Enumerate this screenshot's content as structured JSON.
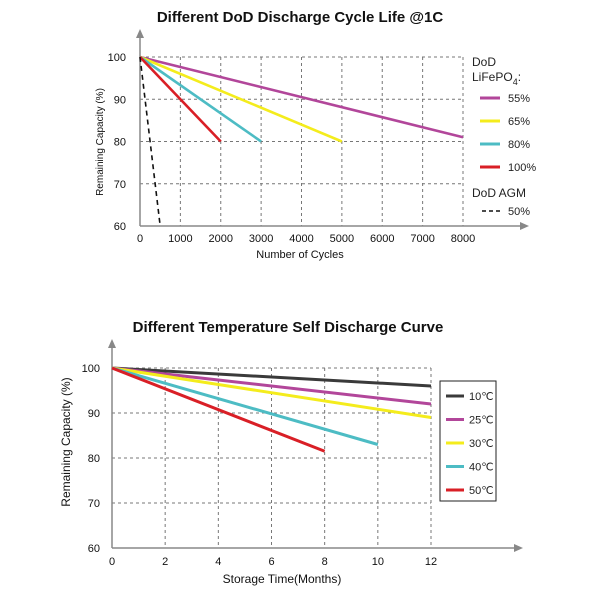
{
  "chart_data": [
    {
      "type": "line",
      "title": "Different DoD Discharge Cycle Life @1C",
      "xlabel": "Number of Cycles",
      "ylabel": "Remaining Capacity (%)",
      "xlim": [
        0,
        8000
      ],
      "ylim": [
        60,
        100
      ],
      "xticks": [
        "0",
        "1000",
        "2000",
        "3000",
        "4000",
        "5000",
        "6000",
        "7000",
        "8000"
      ],
      "yticks": [
        "60",
        "70",
        "80",
        "90",
        "100"
      ],
      "legend_title": "DoD",
      "legend_subtitle": "LiFePO",
      "legend_subtitle_sub": "4",
      "legend_subtitle_suffix": ":",
      "legend_group2_title": "DoD AGM",
      "grid": true,
      "series": [
        {
          "name": "55%",
          "color": "#b2469a",
          "dashed": false,
          "x": [
            0,
            8000
          ],
          "y": [
            100,
            81
          ]
        },
        {
          "name": "65%",
          "color": "#f4ec1c",
          "dashed": false,
          "x": [
            0,
            5000
          ],
          "y": [
            100,
            80
          ]
        },
        {
          "name": "80%",
          "color": "#4dbcc4",
          "dashed": false,
          "x": [
            0,
            3000
          ],
          "y": [
            100,
            80
          ]
        },
        {
          "name": "100%",
          "color": "#d91f26",
          "dashed": false,
          "x": [
            0,
            2000
          ],
          "y": [
            100,
            80
          ]
        },
        {
          "name": "50%",
          "color": "#111111",
          "dashed": true,
          "x": [
            0,
            500
          ],
          "y": [
            100,
            60
          ]
        }
      ]
    },
    {
      "type": "line",
      "title": "Different Temperature Self Discharge Curve",
      "xlabel": "Storage Time(Months)",
      "ylabel": "Remaining Capacity (%)",
      "xlim": [
        0,
        12
      ],
      "ylim": [
        60,
        100
      ],
      "xticks": [
        "0",
        "2",
        "4",
        "6",
        "8",
        "10",
        "12"
      ],
      "yticks": [
        "60",
        "70",
        "80",
        "90",
        "100"
      ],
      "grid": true,
      "series": [
        {
          "name": "10℃",
          "color": "#3a3a3a",
          "dashed": false,
          "x": [
            0,
            12
          ],
          "y": [
            100,
            96
          ]
        },
        {
          "name": "25℃",
          "color": "#b2469a",
          "dashed": false,
          "x": [
            0,
            12
          ],
          "y": [
            100,
            92
          ]
        },
        {
          "name": "30℃",
          "color": "#f4ec1c",
          "dashed": false,
          "x": [
            0,
            12
          ],
          "y": [
            100,
            89
          ]
        },
        {
          "name": "40℃",
          "color": "#4dbcc4",
          "dashed": false,
          "x": [
            0,
            10
          ],
          "y": [
            100,
            83
          ]
        },
        {
          "name": "50℃",
          "color": "#d91f26",
          "dashed": false,
          "x": [
            0,
            8
          ],
          "y": [
            100,
            81.5
          ]
        }
      ]
    }
  ]
}
